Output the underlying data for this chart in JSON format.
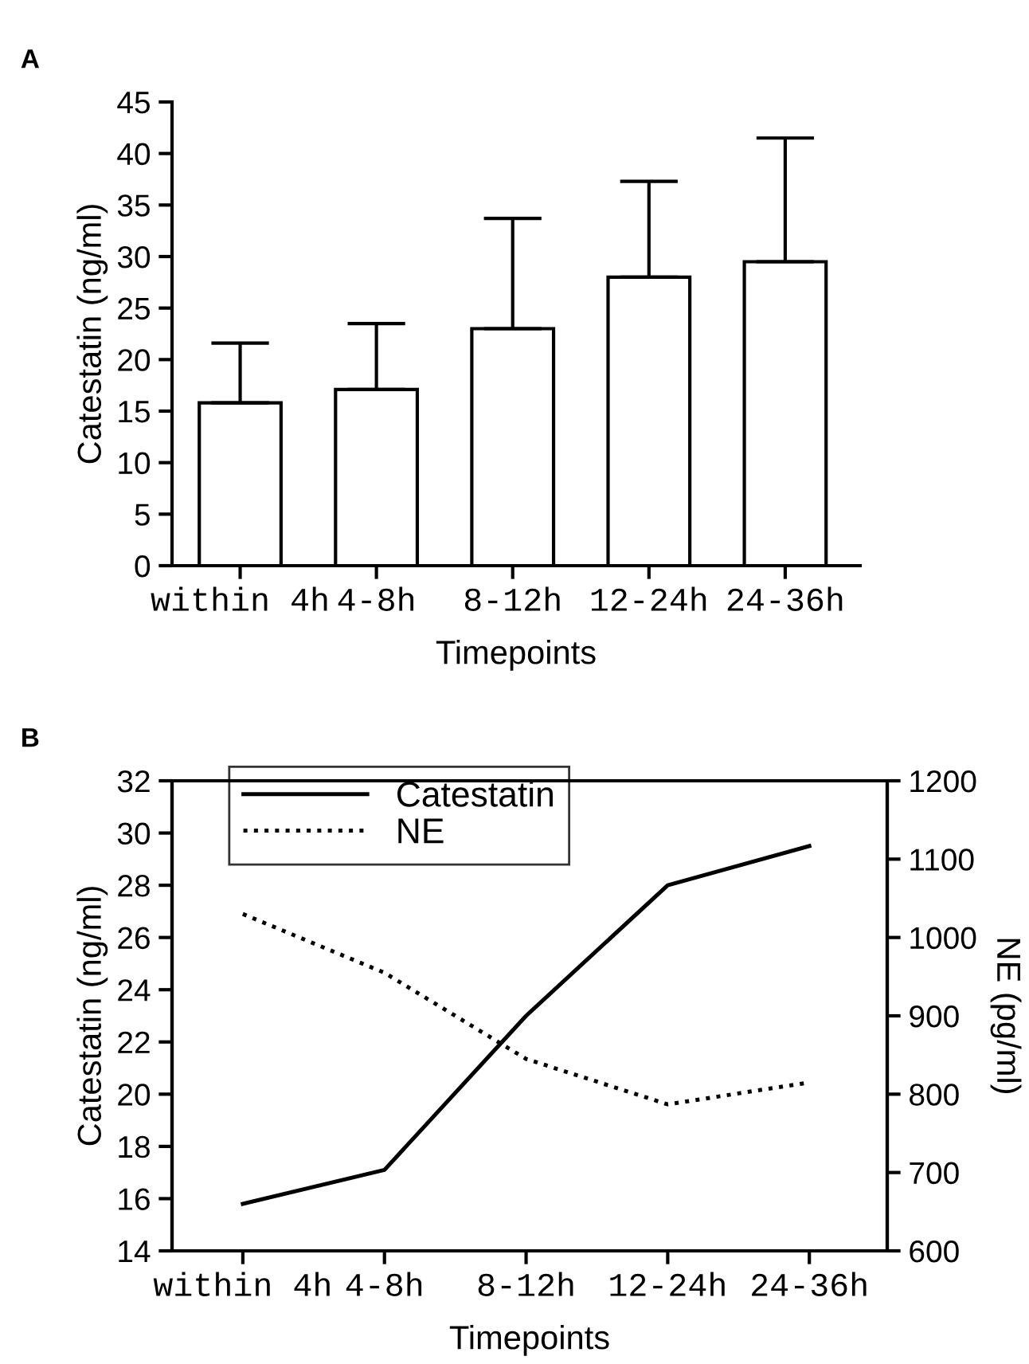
{
  "chart_data": [
    {
      "type": "bar",
      "title": "A",
      "xlabel": "Timepoints",
      "ylabel": "Catestatin (ng/ml)",
      "categories": [
        "within 4h",
        "4-8h",
        "8-12h",
        "12-24h",
        "24-36h"
      ],
      "series": [
        {
          "color": "#ffffff",
          "values": [
            15.8,
            17.1,
            23.0,
            28.0,
            29.5
          ],
          "errors": [
            [
              15.8,
              21.6
            ],
            [
              17.1,
              23.5
            ],
            [
              23.0,
              33.7
            ],
            [
              28.0,
              37.3
            ],
            [
              29.5,
              41.5
            ]
          ]
        }
      ],
      "ylim": [
        0,
        45
      ],
      "yticks": [
        0,
        5,
        10,
        15,
        20,
        25,
        30,
        35,
        40,
        45
      ],
      "grid": false,
      "legend": false
    },
    {
      "type": "line",
      "title": "B",
      "xlabel": "Timepoints",
      "ylabel": "Catestatin (ng/ml)",
      "y2label": "NE (pg/ml)",
      "categories": [
        "within 4h",
        "4-8h",
        "8-12h",
        "12-24h",
        "24-36h"
      ],
      "series": [
        {
          "name": "Catestatin",
          "color": "#000000",
          "line_style": "solid",
          "values": [
            15.8,
            17.1,
            23.0,
            28.0,
            29.5
          ]
        },
        {
          "name": "NE",
          "color": "#000000",
          "line_style": "dotted",
          "axis": "y2",
          "values": [
            1030,
            955,
            845,
            787,
            815
          ]
        }
      ],
      "ylim": [
        14,
        32
      ],
      "yticks": [
        14,
        16,
        18,
        20,
        22,
        24,
        26,
        28,
        30,
        32
      ],
      "y2lim": [
        600,
        1200
      ],
      "y2ticks": [
        600,
        700,
        800,
        900,
        1000,
        1100,
        1200
      ],
      "grid": false,
      "legend": "top left"
    }
  ]
}
